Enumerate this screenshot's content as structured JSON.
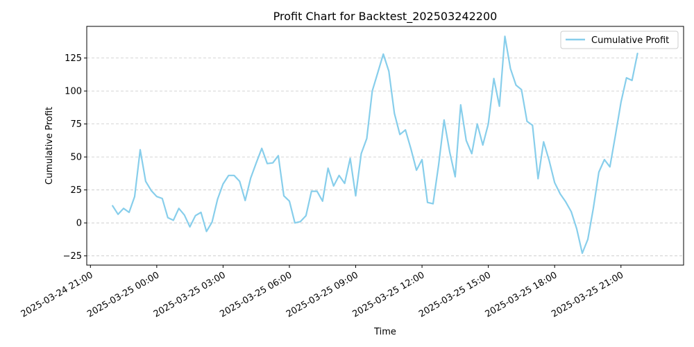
{
  "chart_data": {
    "type": "line",
    "title": "Profit Chart for Backtest_202503242200",
    "xlabel": "Time",
    "ylabel": "Cumulative Profit",
    "legend_position": "top-right",
    "grid": "y-dashed",
    "xlim": [
      "2025-03-24 20:50",
      "2025-03-25 23:50"
    ],
    "ylim": [
      -32,
      149
    ],
    "x_ticks": [
      "2025-03-24 21:00",
      "2025-03-25 00:00",
      "2025-03-25 03:00",
      "2025-03-25 06:00",
      "2025-03-25 09:00",
      "2025-03-25 12:00",
      "2025-03-25 15:00",
      "2025-03-25 18:00",
      "2025-03-25 21:00"
    ],
    "x_tick_labels": [
      "2025-03-24 21:00",
      "2025-03-25 00:00",
      "2025-03-25 03:00",
      "2025-03-25 06:00",
      "2025-03-25 09:00",
      "2025-03-25 12:00",
      "2025-03-25 15:00",
      "2025-03-25 18:00",
      "2025-03-25 21:00"
    ],
    "y_ticks": [
      -25,
      0,
      25,
      50,
      75,
      100,
      125
    ],
    "y_tick_labels": [
      "−25",
      "0",
      "25",
      "50",
      "75",
      "100",
      "125"
    ],
    "series": [
      {
        "name": "Cumulative Profit",
        "color": "#87CEEB",
        "x": [
          "2025-03-24 22:00",
          "2025-03-24 22:15",
          "2025-03-24 22:30",
          "2025-03-24 22:45",
          "2025-03-24 23:00",
          "2025-03-24 23:15",
          "2025-03-24 23:30",
          "2025-03-24 23:45",
          "2025-03-25 00:00",
          "2025-03-25 00:15",
          "2025-03-25 00:30",
          "2025-03-25 00:45",
          "2025-03-25 01:00",
          "2025-03-25 01:15",
          "2025-03-25 01:30",
          "2025-03-25 01:45",
          "2025-03-25 02:00",
          "2025-03-25 02:15",
          "2025-03-25 02:30",
          "2025-03-25 02:45",
          "2025-03-25 03:00",
          "2025-03-25 03:15",
          "2025-03-25 03:30",
          "2025-03-25 03:45",
          "2025-03-25 04:00",
          "2025-03-25 04:15",
          "2025-03-25 04:30",
          "2025-03-25 04:45",
          "2025-03-25 05:00",
          "2025-03-25 05:15",
          "2025-03-25 05:30",
          "2025-03-25 05:45",
          "2025-03-25 06:00",
          "2025-03-25 06:15",
          "2025-03-25 06:30",
          "2025-03-25 06:45",
          "2025-03-25 07:00",
          "2025-03-25 07:15",
          "2025-03-25 07:30",
          "2025-03-25 07:45",
          "2025-03-25 08:00",
          "2025-03-25 08:15",
          "2025-03-25 08:30",
          "2025-03-25 08:45",
          "2025-03-25 09:00",
          "2025-03-25 09:15",
          "2025-03-25 09:30",
          "2025-03-25 09:45",
          "2025-03-25 10:00",
          "2025-03-25 10:15",
          "2025-03-25 10:30",
          "2025-03-25 10:45",
          "2025-03-25 11:00",
          "2025-03-25 11:15",
          "2025-03-25 11:30",
          "2025-03-25 11:45",
          "2025-03-25 12:00",
          "2025-03-25 12:15",
          "2025-03-25 12:30",
          "2025-03-25 12:45",
          "2025-03-25 13:00",
          "2025-03-25 13:15",
          "2025-03-25 13:30",
          "2025-03-25 13:45",
          "2025-03-25 14:00",
          "2025-03-25 14:15",
          "2025-03-25 14:30",
          "2025-03-25 14:45",
          "2025-03-25 15:00",
          "2025-03-25 15:15",
          "2025-03-25 15:30",
          "2025-03-25 15:45",
          "2025-03-25 16:00",
          "2025-03-25 16:15",
          "2025-03-25 16:30",
          "2025-03-25 16:45",
          "2025-03-25 17:00",
          "2025-03-25 17:15",
          "2025-03-25 17:30",
          "2025-03-25 17:45",
          "2025-03-25 18:00",
          "2025-03-25 18:15",
          "2025-03-25 18:30",
          "2025-03-25 18:45",
          "2025-03-25 19:00",
          "2025-03-25 19:15",
          "2025-03-25 19:30",
          "2025-03-25 19:45",
          "2025-03-25 20:00",
          "2025-03-25 20:15",
          "2025-03-25 20:30",
          "2025-03-25 20:45",
          "2025-03-25 21:00",
          "2025-03-25 21:15",
          "2025-03-25 21:30",
          "2025-03-25 21:45"
        ],
        "values": [
          13,
          6.5,
          11,
          8,
          20,
          55.5,
          31.5,
          24.5,
          20,
          18.5,
          4,
          2,
          11,
          6,
          -3,
          5.5,
          8,
          -6.5,
          0.5,
          18,
          29.5,
          36,
          36,
          31.5,
          17,
          34,
          45.5,
          56.5,
          45,
          45.5,
          51,
          20.5,
          16.5,
          0,
          1,
          5.5,
          24,
          24,
          16.5,
          41.5,
          28,
          36,
          30,
          49,
          20.5,
          52.5,
          64,
          100,
          114,
          128,
          115,
          83,
          67,
          70.5,
          56,
          40,
          48,
          15.5,
          14.5,
          44,
          78,
          54,
          35,
          89.5,
          62.5,
          52.5,
          75,
          59,
          75,
          109.5,
          88.5,
          141.5,
          117,
          104.5,
          101,
          77,
          74,
          33.5,
          61.5,
          47.5,
          30.5,
          22,
          16,
          8.5,
          -4.5,
          -23,
          -12.5,
          11,
          38.5,
          48,
          42.5,
          66.5,
          91.5,
          110,
          108,
          128.5
        ]
      }
    ]
  }
}
